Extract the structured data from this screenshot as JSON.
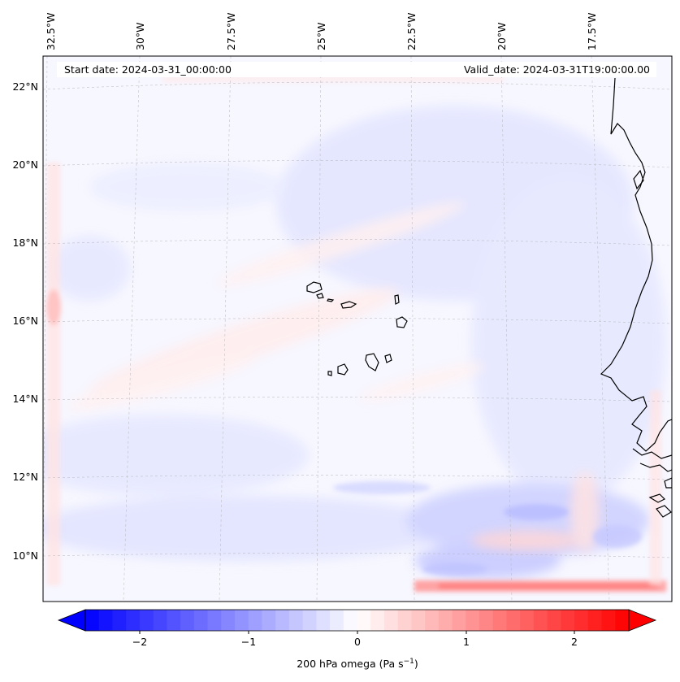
{
  "header": {
    "start_date": "Start date: 2024-03-31_00:00:00",
    "valid_date": "Valid_date: 2024-03-31T19:00:00.00"
  },
  "map": {
    "lon_labels": [
      "32.5°W",
      "30°W",
      "27.5°W",
      "25°W",
      "22.5°W",
      "20°W",
      "17.5°W"
    ],
    "lat_labels": [
      "22°N",
      "20°N",
      "18°N",
      "16°N",
      "14°N",
      "12°N",
      "10°N"
    ],
    "field": "200 hPa omega",
    "colors": {
      "neg": "#0000ff",
      "mid": "#ffffff",
      "pos": "#ff0000",
      "coast": "#000000"
    }
  },
  "colorbar": {
    "ticks": [
      "−2",
      "−1",
      "0",
      "1",
      "2"
    ],
    "label": "200 hPa omega (Pa s",
    "label_sup": "−1",
    "label_end": ")"
  }
}
